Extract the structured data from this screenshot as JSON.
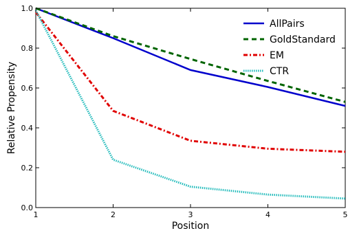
{
  "chart_data": {
    "type": "line",
    "title": "",
    "xlabel": "Position",
    "ylabel": "Relative Propensity",
    "xlim": [
      1,
      5
    ],
    "ylim": [
      0.0,
      1.0
    ],
    "xticks": [
      "1",
      "2",
      "3",
      "4",
      "5"
    ],
    "yticks": [
      "0.0",
      "0.2",
      "0.4",
      "0.6",
      "0.8",
      "1.0"
    ],
    "grid": false,
    "legend_position": "top-right",
    "x": [
      1,
      2,
      3,
      4,
      5
    ],
    "series": [
      {
        "name": "AllPairs",
        "values": [
          1.0,
          0.85,
          0.69,
          0.605,
          0.51
        ],
        "color": "#0000cc",
        "style": "solid"
      },
      {
        "name": "GoldStandard",
        "values": [
          1.0,
          0.86,
          0.745,
          0.635,
          0.53
        ],
        "color": "#006400",
        "style": "dashed"
      },
      {
        "name": "EM",
        "values": [
          0.98,
          0.485,
          0.335,
          0.295,
          0.28
        ],
        "color": "#e00000",
        "style": "dashdot"
      },
      {
        "name": "CTR",
        "values": [
          0.99,
          0.24,
          0.105,
          0.065,
          0.045
        ],
        "color": "#22bbbb",
        "style": "dotted"
      }
    ]
  }
}
